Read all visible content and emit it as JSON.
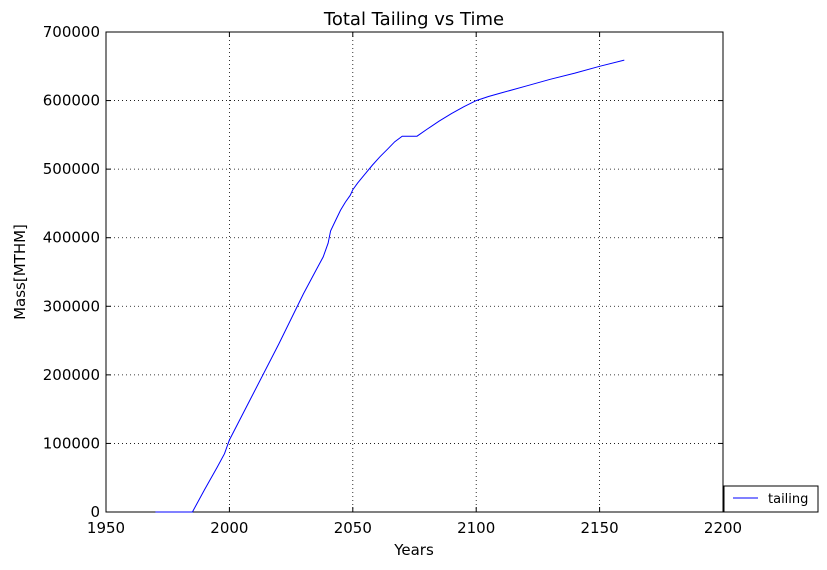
{
  "chart_data": {
    "type": "line",
    "title": "Total Tailing vs Time",
    "xlabel": "Years",
    "ylabel": "Mass[MTHM]",
    "xlim": [
      1950,
      2200
    ],
    "ylim": [
      0,
      700000
    ],
    "xticks": [
      1950,
      2000,
      2050,
      2100,
      2150,
      2200
    ],
    "yticks": [
      0,
      100000,
      200000,
      300000,
      400000,
      500000,
      600000,
      700000
    ],
    "grid": true,
    "legend_position": "bottom-right (outside)",
    "series": [
      {
        "name": "tailing",
        "color": "#0000ff",
        "points": [
          [
            1970,
            0
          ],
          [
            1985,
            0
          ],
          [
            1990,
            33000
          ],
          [
            1995,
            65000
          ],
          [
            1998,
            85000
          ],
          [
            2000,
            105000
          ],
          [
            2010,
            175000
          ],
          [
            2020,
            245000
          ],
          [
            2030,
            318000
          ],
          [
            2035,
            352000
          ],
          [
            2038,
            372000
          ],
          [
            2040,
            392000
          ],
          [
            2041,
            410000
          ],
          [
            2043,
            425000
          ],
          [
            2045,
            440000
          ],
          [
            2047,
            452000
          ],
          [
            2049,
            462000
          ],
          [
            2050,
            470000
          ],
          [
            2052,
            480000
          ],
          [
            2055,
            493000
          ],
          [
            2058,
            506000
          ],
          [
            2061,
            518000
          ],
          [
            2064,
            529000
          ],
          [
            2067,
            540000
          ],
          [
            2070,
            548000
          ],
          [
            2076,
            548000
          ],
          [
            2080,
            558000
          ],
          [
            2085,
            570000
          ],
          [
            2090,
            581000
          ],
          [
            2095,
            591000
          ],
          [
            2100,
            600000
          ],
          [
            2105,
            606000
          ],
          [
            2110,
            611000
          ],
          [
            2120,
            621000
          ],
          [
            2130,
            631000
          ],
          [
            2140,
            640000
          ],
          [
            2150,
            650000
          ],
          [
            2160,
            659000
          ]
        ]
      }
    ]
  }
}
